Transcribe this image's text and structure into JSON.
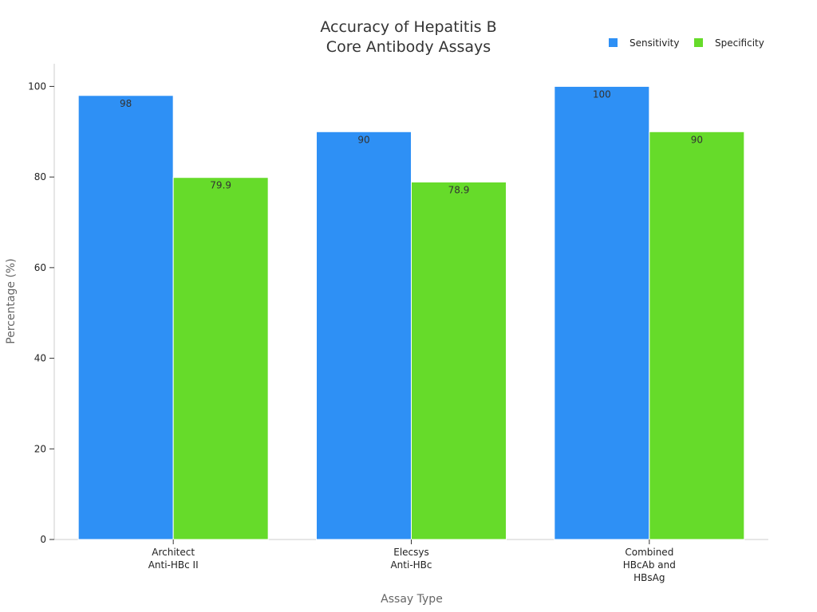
{
  "chart_data": {
    "type": "bar",
    "title": [
      "Accuracy of Hepatitis B",
      "Core Antibody Assays"
    ],
    "xlabel": "Assay Type",
    "ylabel": "Percentage (%)",
    "ylim": [
      0,
      105
    ],
    "yticks": [
      0,
      20,
      40,
      60,
      80,
      100
    ],
    "categories": [
      [
        "Architect",
        "Anti-HBc II"
      ],
      [
        "Elecsys",
        "Anti-HBc"
      ],
      [
        "Combined",
        "HBcAb and",
        "HBsAg"
      ]
    ],
    "series": [
      {
        "name": "Sensitivity",
        "color": "#2e90f5",
        "values": [
          98,
          90,
          100
        ],
        "labels": [
          "98",
          "90",
          "100"
        ]
      },
      {
        "name": "Specificity",
        "color": "#66db2a",
        "values": [
          79.9,
          78.9,
          90
        ],
        "labels": [
          "79.9",
          "78.9",
          "90"
        ]
      }
    ],
    "legend_position": "top-right",
    "grid": false
  }
}
